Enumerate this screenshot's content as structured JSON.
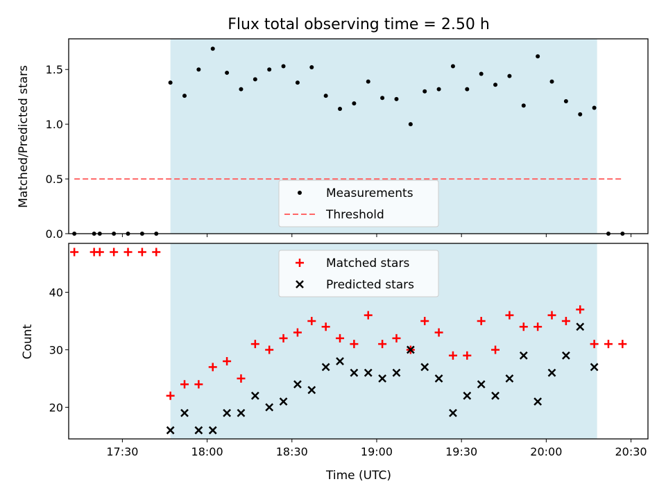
{
  "chart_data": [
    {
      "type": "scatter",
      "title": "Flux total observing time = 2.50 h",
      "xlabel": "",
      "ylabel": "Matched/Predicted stars",
      "xlim": [
        "17:11",
        "20:36"
      ],
      "ylim": [
        0,
        1.78
      ],
      "yticks": [
        0.0,
        0.5,
        1.0,
        1.5
      ],
      "ytick_labels": [
        "0.0",
        "0.5",
        "1.0",
        "1.5"
      ],
      "shaded_span": [
        "17:47",
        "20:18"
      ],
      "shaded_color": "#add8e6",
      "legend_position": "lower center",
      "series": [
        {
          "name": "Measurements",
          "kind": "dot",
          "color": "#000000",
          "points": [
            [
              "17:13",
              0.0
            ],
            [
              "17:20",
              0.0
            ],
            [
              "17:22",
              0.0
            ],
            [
              "17:27",
              0.0
            ],
            [
              "17:32",
              0.0
            ],
            [
              "17:37",
              0.0
            ],
            [
              "17:42",
              0.0
            ],
            [
              "17:47",
              1.38
            ],
            [
              "17:52",
              1.26
            ],
            [
              "17:57",
              1.5
            ],
            [
              "18:02",
              1.69
            ],
            [
              "18:07",
              1.47
            ],
            [
              "18:12",
              1.32
            ],
            [
              "18:17",
              1.41
            ],
            [
              "18:22",
              1.5
            ],
            [
              "18:27",
              1.53
            ],
            [
              "18:32",
              1.38
            ],
            [
              "18:37",
              1.52
            ],
            [
              "18:42",
              1.26
            ],
            [
              "18:47",
              1.14
            ],
            [
              "18:52",
              1.19
            ],
            [
              "18:57",
              1.39
            ],
            [
              "19:02",
              1.24
            ],
            [
              "19:07",
              1.23
            ],
            [
              "19:12",
              1.0
            ],
            [
              "19:17",
              1.3
            ],
            [
              "19:22",
              1.32
            ],
            [
              "19:27",
              1.53
            ],
            [
              "19:32",
              1.32
            ],
            [
              "19:37",
              1.46
            ],
            [
              "19:42",
              1.36
            ],
            [
              "19:47",
              1.44
            ],
            [
              "19:52",
              1.17
            ],
            [
              "19:57",
              1.62
            ],
            [
              "20:02",
              1.39
            ],
            [
              "20:07",
              1.21
            ],
            [
              "20:12",
              1.09
            ],
            [
              "20:17",
              1.15
            ],
            [
              "20:22",
              0.0
            ],
            [
              "20:27",
              0.0
            ]
          ]
        },
        {
          "name": "Threshold",
          "kind": "dashed-line",
          "color": "#ff6666",
          "points": [
            [
              "17:13",
              0.5
            ],
            [
              "20:27",
              0.5
            ]
          ]
        }
      ]
    },
    {
      "type": "scatter",
      "title": "",
      "xlabel": "Time (UTC)",
      "ylabel": "Count",
      "xlim": [
        "17:11",
        "20:36"
      ],
      "ylim": [
        14.5,
        48.5
      ],
      "yticks": [
        20,
        30,
        40
      ],
      "ytick_labels": [
        "20",
        "30",
        "40"
      ],
      "xticks": [
        "17:30",
        "18:00",
        "18:30",
        "19:00",
        "19:30",
        "20:00",
        "20:30"
      ],
      "xtick_labels": [
        "17:30",
        "18:00",
        "18:30",
        "19:00",
        "19:30",
        "20:00",
        "20:30"
      ],
      "shaded_span": [
        "17:47",
        "20:18"
      ],
      "shaded_color": "#add8e6",
      "legend_position": "upper center",
      "series": [
        {
          "name": "Matched stars",
          "kind": "plus",
          "color": "#ff0000",
          "points": [
            [
              "17:13",
              47
            ],
            [
              "17:20",
              47
            ],
            [
              "17:22",
              47
            ],
            [
              "17:27",
              47
            ],
            [
              "17:32",
              47
            ],
            [
              "17:37",
              47
            ],
            [
              "17:42",
              47
            ],
            [
              "17:47",
              22
            ],
            [
              "17:52",
              24
            ],
            [
              "17:57",
              24
            ],
            [
              "18:02",
              27
            ],
            [
              "18:07",
              28
            ],
            [
              "18:12",
              25
            ],
            [
              "18:17",
              31
            ],
            [
              "18:22",
              30
            ],
            [
              "18:27",
              32
            ],
            [
              "18:32",
              33
            ],
            [
              "18:37",
              35
            ],
            [
              "18:42",
              34
            ],
            [
              "18:47",
              32
            ],
            [
              "18:52",
              31
            ],
            [
              "18:57",
              36
            ],
            [
              "19:02",
              31
            ],
            [
              "19:07",
              32
            ],
            [
              "19:12",
              30
            ],
            [
              "19:17",
              35
            ],
            [
              "19:22",
              33
            ],
            [
              "19:27",
              29
            ],
            [
              "19:32",
              29
            ],
            [
              "19:37",
              35
            ],
            [
              "19:42",
              30
            ],
            [
              "19:47",
              36
            ],
            [
              "19:52",
              34
            ],
            [
              "19:57",
              34
            ],
            [
              "20:02",
              36
            ],
            [
              "20:07",
              35
            ],
            [
              "20:12",
              37
            ],
            [
              "20:17",
              31
            ],
            [
              "20:22",
              31
            ],
            [
              "20:27",
              31
            ]
          ]
        },
        {
          "name": "Predicted stars",
          "kind": "cross",
          "color": "#000000",
          "points": [
            [
              "17:47",
              16
            ],
            [
              "17:52",
              19
            ],
            [
              "17:57",
              16
            ],
            [
              "18:02",
              16
            ],
            [
              "18:07",
              19
            ],
            [
              "18:12",
              19
            ],
            [
              "18:17",
              22
            ],
            [
              "18:22",
              20
            ],
            [
              "18:27",
              21
            ],
            [
              "18:32",
              24
            ],
            [
              "18:37",
              23
            ],
            [
              "18:42",
              27
            ],
            [
              "18:47",
              28
            ],
            [
              "18:52",
              26
            ],
            [
              "18:57",
              26
            ],
            [
              "19:02",
              25
            ],
            [
              "19:07",
              26
            ],
            [
              "19:12",
              30
            ],
            [
              "19:17",
              27
            ],
            [
              "19:22",
              25
            ],
            [
              "19:27",
              19
            ],
            [
              "19:32",
              22
            ],
            [
              "19:37",
              24
            ],
            [
              "19:42",
              22
            ],
            [
              "19:47",
              25
            ],
            [
              "19:52",
              29
            ],
            [
              "19:57",
              21
            ],
            [
              "20:02",
              26
            ],
            [
              "20:07",
              29
            ],
            [
              "20:12",
              34
            ],
            [
              "20:17",
              27
            ]
          ]
        }
      ]
    }
  ]
}
